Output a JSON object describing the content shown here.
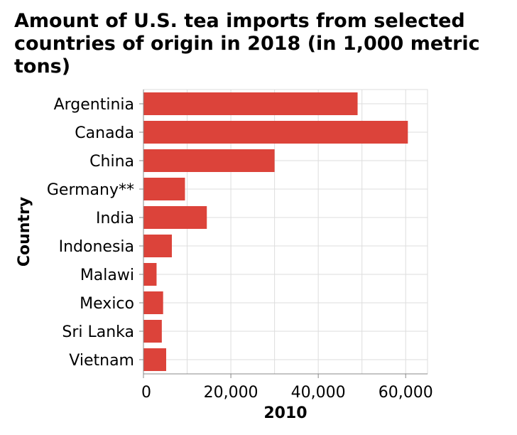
{
  "chart_data": {
    "type": "bar",
    "orientation": "horizontal",
    "title": "Amount of U.S. tea imports from selected countries of origin in 2018 (in 1,000 metric tons)",
    "xlabel": "2010",
    "ylabel": "Country",
    "categories": [
      "Argentinia",
      "Canada",
      "China",
      "Germany**",
      "India",
      "Indonesia",
      "Malawi",
      "Mexico",
      "Sri Lanka",
      "Vietnam"
    ],
    "values": [
      49000,
      60500,
      30000,
      9500,
      14500,
      6500,
      3000,
      4500,
      4200,
      5200
    ],
    "xlim": [
      0,
      65000
    ],
    "xticks": [
      0,
      20000,
      40000,
      60000
    ],
    "xtick_labels": [
      "0",
      "20,000",
      "40,000",
      "60,000"
    ],
    "grid": true,
    "bar_color": "#dc433a",
    "grid_color": "#dddddd"
  }
}
